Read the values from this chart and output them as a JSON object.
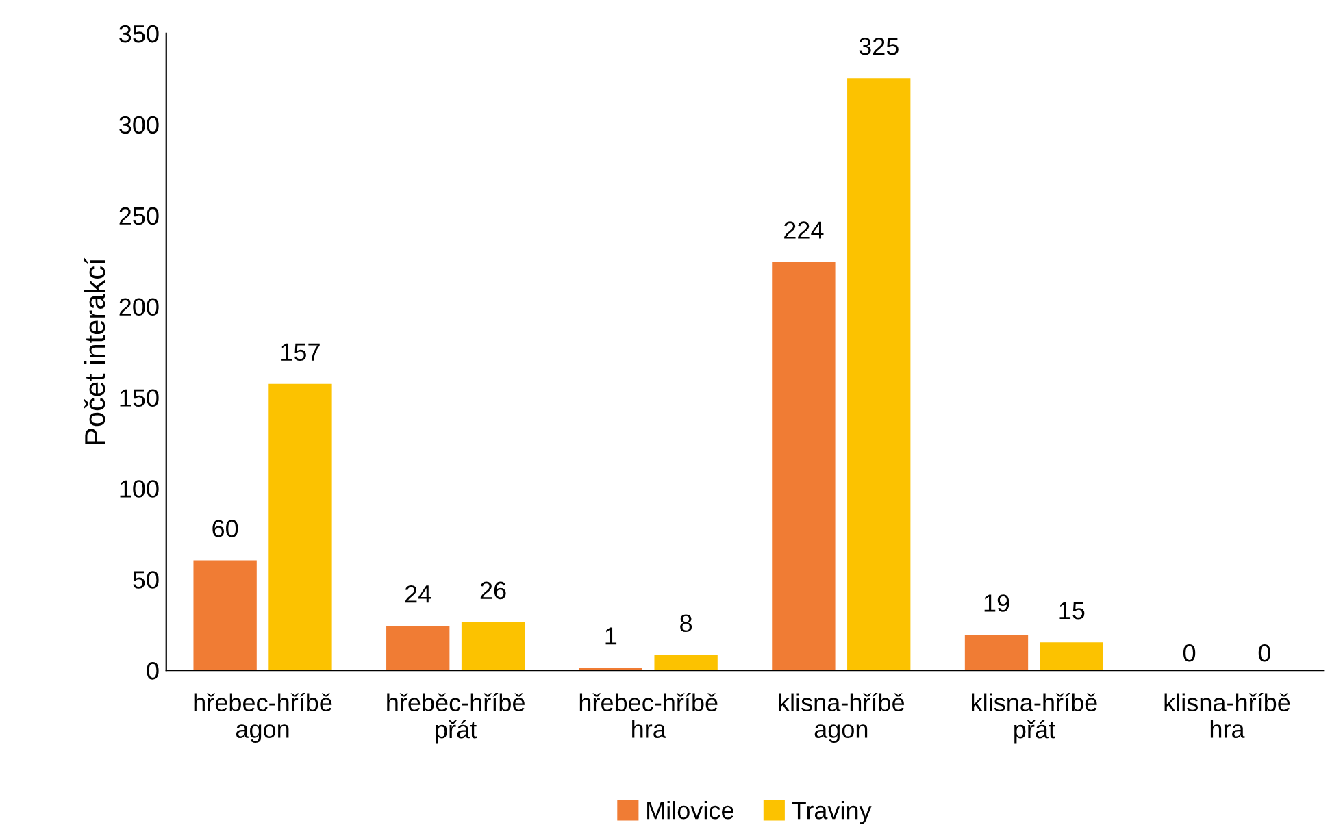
{
  "chart_data": {
    "type": "bar",
    "ylabel": "Počet interakcí",
    "categories": [
      "hřebec-hříbě\nagon",
      "hřeběc-hříbě\npřát",
      "hřebec-hříbě\nhra",
      "klisna-hříbě\nagon",
      "klisna-hříbě\npřát",
      "klisna-hříbě\nhra"
    ],
    "series": [
      {
        "name": "Milovice",
        "color": "#f07c34",
        "values": [
          60,
          24,
          1,
          224,
          19,
          0
        ]
      },
      {
        "name": "Traviny",
        "color": "#fcc200",
        "values": [
          157,
          26,
          8,
          325,
          15,
          0
        ]
      }
    ],
    "ylim": [
      0,
      350
    ],
    "yticks": [
      0,
      50,
      100,
      150,
      200,
      250,
      300,
      350
    ],
    "grid": false,
    "legend": "bottom",
    "data_labels": true
  }
}
